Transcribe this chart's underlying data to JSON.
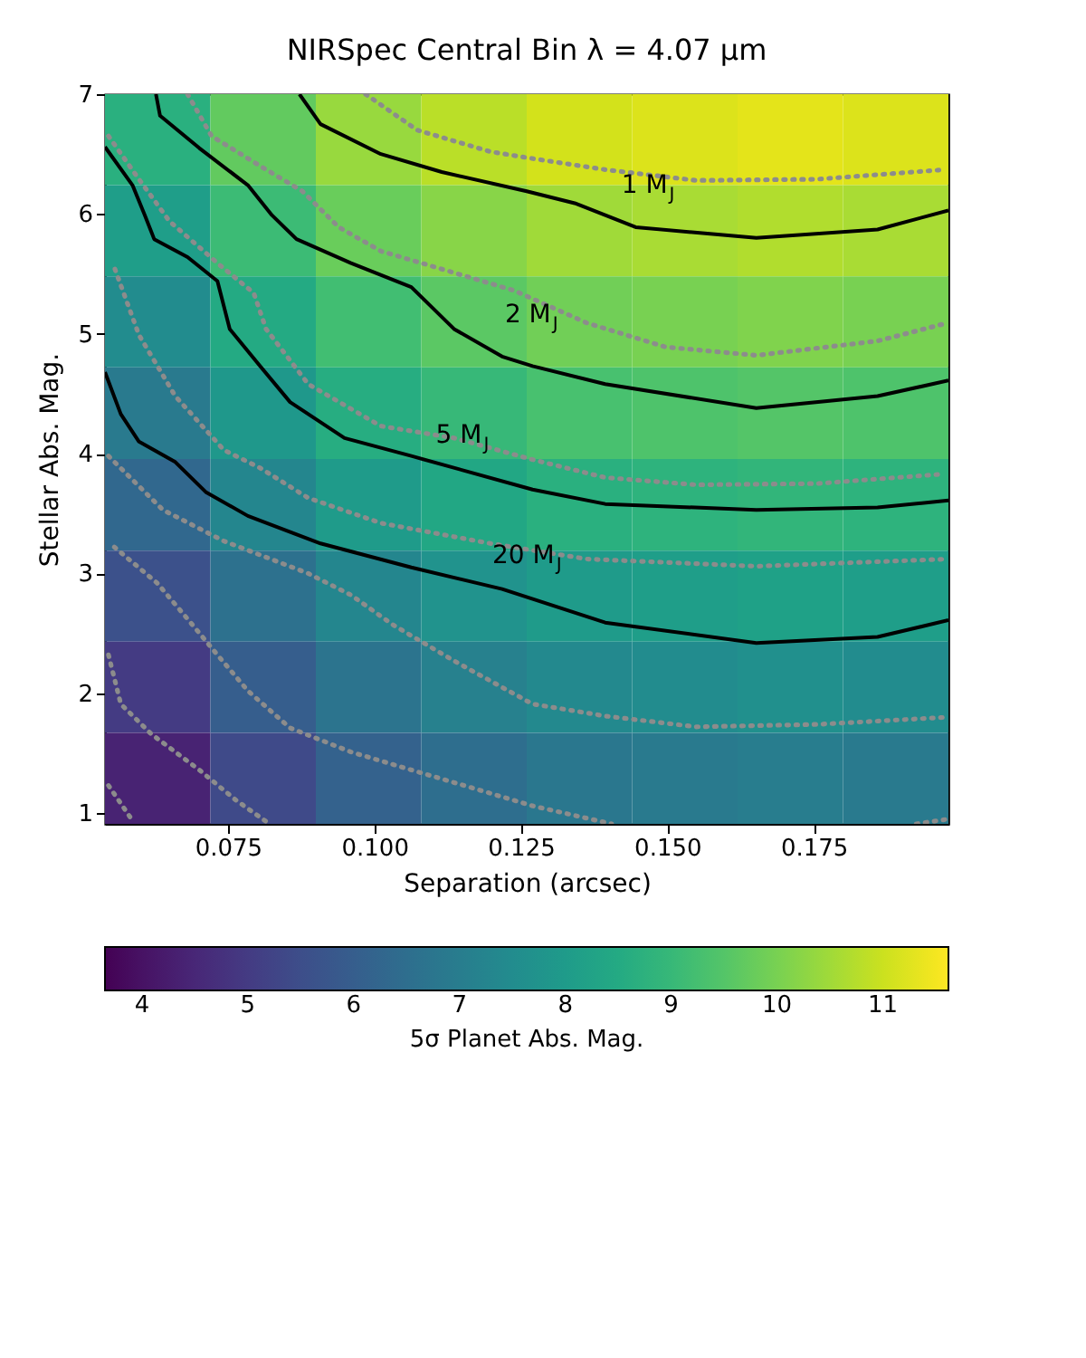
{
  "chart_data": {
    "type": "heatmap",
    "title": "NIRSpec Central Bin λ = 4.07 μm",
    "xlabel": "Separation (arcsec)",
    "ylabel": "Stellar Abs. Mag.",
    "clabel": "5σ Planet Abs. Mag.",
    "xlim": [
      0.054,
      0.198
    ],
    "ylim": [
      0.91,
      7
    ],
    "xticks": [
      0.075,
      {
        "value": 0.1,
        "label": "0.100"
      },
      0.125,
      {
        "value": 0.15,
        "label": "0.150"
      },
      0.175
    ],
    "yticks": [
      1,
      2,
      3,
      4,
      5,
      6,
      7
    ],
    "clim": [
      3.65,
      11.62
    ],
    "cticks": [
      4,
      5,
      6,
      7,
      8,
      9,
      10,
      11
    ],
    "x": [
      0.063,
      0.081,
      0.099,
      0.117,
      0.135,
      0.153,
      0.171,
      0.189
    ],
    "y": [
      6.62,
      5.86,
      5.1,
      4.34,
      3.57,
      2.81,
      2.05,
      1.29
    ],
    "cells": [
      [
        8.7,
        9.7,
        10.4,
        10.8,
        11.1,
        11.2,
        11.3,
        11.2
      ],
      [
        8.1,
        9.1,
        9.8,
        10.2,
        10.5,
        10.6,
        10.7,
        10.6
      ],
      [
        7.5,
        8.5,
        9.2,
        9.6,
        9.9,
        10.0,
        10.1,
        10.0
      ],
      [
        6.9,
        7.9,
        8.6,
        9.0,
        9.3,
        9.4,
        9.5,
        9.4
      ],
      [
        6.3,
        7.3,
        8.0,
        8.4,
        8.7,
        8.8,
        8.9,
        8.8
      ],
      [
        5.6,
        6.6,
        7.3,
        7.7,
        8.0,
        8.1,
        8.2,
        8.1
      ],
      [
        5.0,
        6.0,
        6.7,
        7.1,
        7.4,
        7.5,
        7.6,
        7.5
      ],
      [
        4.4,
        5.4,
        6.1,
        6.5,
        6.8,
        6.9,
        7.0,
        6.9
      ]
    ],
    "series": [
      {
        "type": "line",
        "color": "#000000",
        "line_style": "solid",
        "x": [
          0.0872,
          0.0908,
          0.1011,
          0.1115,
          0.126,
          0.1342,
          0.1446,
          0.1652,
          0.1859,
          0.198
        ],
        "values": [
          7,
          6.75,
          6.5,
          6.35,
          6.19,
          6.09,
          5.89,
          5.8,
          5.87,
          6.03
        ]
      },
      {
        "type": "line",
        "color": "#000000",
        "line_style": "solid",
        "x": [
          0.0627,
          0.0634,
          0.0701,
          0.0784,
          0.0825,
          0.0867,
          0.096,
          0.1063,
          0.1136,
          0.1218,
          0.127,
          0.1394,
          0.1652,
          0.1859,
          0.198
        ],
        "values": [
          7,
          6.82,
          6.55,
          6.24,
          5.99,
          5.79,
          5.59,
          5.39,
          5.04,
          4.81,
          4.73,
          4.58,
          4.38,
          4.48,
          4.61
        ]
      },
      {
        "type": "line",
        "color": "#000000",
        "line_style": "solid",
        "x": [
          0.054,
          0.0587,
          0.0608,
          0.0624,
          0.0681,
          0.0732,
          0.0753,
          0.0805,
          0.0856,
          0.0949,
          0.1063,
          0.127,
          0.1394,
          0.1652,
          0.1859,
          0.198
        ],
        "values": [
          6.56,
          6.24,
          5.99,
          5.79,
          5.64,
          5.44,
          5.04,
          4.73,
          4.43,
          4.13,
          3.98,
          3.7,
          3.58,
          3.53,
          3.55,
          3.61
        ]
      },
      {
        "type": "line",
        "color": "#000000",
        "line_style": "solid",
        "x": [
          0.054,
          0.0567,
          0.0598,
          0.066,
          0.0712,
          0.0784,
          0.0908,
          0.1063,
          0.1218,
          0.1394,
          0.1652,
          0.1859,
          0.198
        ],
        "values": [
          4.68,
          4.33,
          4.1,
          3.93,
          3.68,
          3.48,
          3.25,
          3.05,
          2.87,
          2.59,
          2.42,
          2.47,
          2.61
        ]
      },
      {
        "type": "line",
        "color": "#8c8c8c",
        "line_style": "dotted",
        "x": [
          0.0985,
          0.1073,
          0.1198,
          0.126,
          0.1394,
          0.1549,
          0.1756,
          0.1973
        ],
        "values": [
          7,
          6.7,
          6.52,
          6.47,
          6.37,
          6.28,
          6.29,
          6.37
        ]
      },
      {
        "type": "line",
        "color": "#8c8c8c",
        "line_style": "dotted",
        "x": [
          0.0681,
          0.0722,
          0.0805,
          0.0877,
          0.0939,
          0.1011,
          0.1115,
          0.1239,
          0.1363,
          0.1497,
          0.1652,
          0.1859,
          0.1978
        ],
        "values": [
          7,
          6.65,
          6.4,
          6.19,
          5.89,
          5.69,
          5.54,
          5.36,
          5.09,
          4.89,
          4.82,
          4.94,
          5.09
        ]
      },
      {
        "type": "line",
        "color": "#8c8c8c",
        "line_style": "dotted",
        "x": [
          0.0546,
          0.0598,
          0.065,
          0.0732,
          0.0794,
          0.0815,
          0.0887,
          0.1011,
          0.1136,
          0.127,
          0.1394,
          0.1549,
          0.1756,
          0.1973
        ],
        "values": [
          6.65,
          6.29,
          5.94,
          5.59,
          5.34,
          5.04,
          4.58,
          4.23,
          4.13,
          3.95,
          3.8,
          3.74,
          3.75,
          3.83
        ]
      },
      {
        "type": "line",
        "color": "#8c8c8c",
        "line_style": "dotted",
        "x": [
          0.0557,
          0.0598,
          0.066,
          0.0743,
          0.0805,
          0.0887,
          0.1011,
          0.1198,
          0.1363,
          0.1652,
          0.1978
        ],
        "values": [
          5.54,
          4.99,
          4.48,
          4.03,
          3.88,
          3.63,
          3.42,
          3.25,
          3.12,
          3.06,
          3.12
        ]
      },
      {
        "type": "line",
        "color": "#8c8c8c",
        "line_style": "dotted",
        "x": [
          0.0546,
          0.0639,
          0.0743,
          0.0887,
          0.096,
          0.1032,
          0.1136,
          0.127,
          0.1394,
          0.1549,
          0.1756,
          0.1978
        ],
        "values": [
          3.98,
          3.53,
          3.27,
          3.0,
          2.82,
          2.57,
          2.27,
          1.91,
          1.81,
          1.72,
          1.74,
          1.8
        ]
      },
      {
        "type": "line",
        "color": "#8c8c8c",
        "line_style": "dotted",
        "x": [
          0.0556,
          0.0629,
          0.0681,
          0.0732,
          0.0784,
          0.0856,
          0.096,
          0.1063,
          0.1167,
          0.127,
          0.1405
        ],
        "values": [
          3.22,
          2.92,
          2.62,
          2.32,
          2.02,
          1.71,
          1.51,
          1.36,
          1.21,
          1.06,
          0.91
        ]
      },
      {
        "type": "line",
        "color": "#8c8c8c",
        "line_style": "dotted",
        "x": [
          0.0546,
          0.0567,
          0.0619,
          0.0701,
          0.0763,
          0.0815
        ],
        "values": [
          2.32,
          1.91,
          1.66,
          1.36,
          1.11,
          0.93
        ]
      },
      {
        "type": "line",
        "color": "#8c8c8c",
        "line_style": "dotted",
        "x": [
          0.0546,
          0.0588
        ],
        "values": [
          1.23,
          0.93
        ]
      },
      {
        "type": "line",
        "color": "#8c8c8c",
        "line_style": "dotted",
        "x": [
          0.1925,
          0.198
        ],
        "values": [
          0.91,
          0.95
        ]
      }
    ],
    "annotations": [
      {
        "text": "1 M$_{J}$",
        "x": 0.1488,
        "y": 6.24
      },
      {
        "text": "2 M$_{J}$",
        "x": 0.1289,
        "y": 5.16
      },
      {
        "text": "5 M$_{J}$",
        "x": 0.1171,
        "y": 4.15
      },
      {
        "text": "20 M$_{J}$",
        "x": 0.1295,
        "y": 3.15
      }
    ]
  }
}
